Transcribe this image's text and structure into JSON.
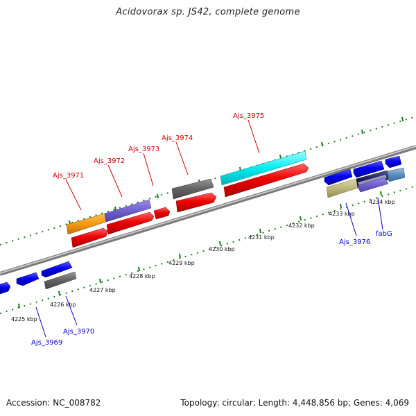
{
  "title": "Acidovorax sp. JS42, complete genome",
  "footer": {
    "accession": "Accession: NC_008782",
    "summary": "Topology: circular; Length: 4,448,856 bp; Genes: 4,069"
  },
  "colors": {
    "forward_label": "#cc0000",
    "reverse_label": "#0000cc",
    "tick": "#1a7a1a",
    "axis": "#909090"
  },
  "kbp_labels": [
    "4225 kbp",
    "4226 kbp",
    "4227 kbp",
    "4228 kbp",
    "4229 kbp",
    "4230 kbp",
    "4231 kbp",
    "4232 kbp",
    "4233 kbp",
    "4234 kbp"
  ],
  "genes": [
    {
      "label": "Ajs_3969",
      "strand": "reverse",
      "color": "#0000cc"
    },
    {
      "label": "Ajs_3970",
      "strand": "reverse",
      "color": "#0000cc"
    },
    {
      "label": "Ajs_3971",
      "strand": "forward",
      "color": "#cc0000"
    },
    {
      "label": "Ajs_3972",
      "strand": "forward",
      "color": "#cc0000"
    },
    {
      "label": "Ajs_3973",
      "strand": "forward",
      "color": "#cc0000"
    },
    {
      "label": "Ajs_3974",
      "strand": "forward",
      "color": "#cc0000"
    },
    {
      "label": "Ajs_3975",
      "strand": "forward",
      "color": "#cc0000"
    },
    {
      "label": "Ajs_3976",
      "strand": "reverse",
      "color": "#0000cc"
    },
    {
      "label": "fabG",
      "strand": "reverse",
      "color": "#0000cc"
    }
  ]
}
